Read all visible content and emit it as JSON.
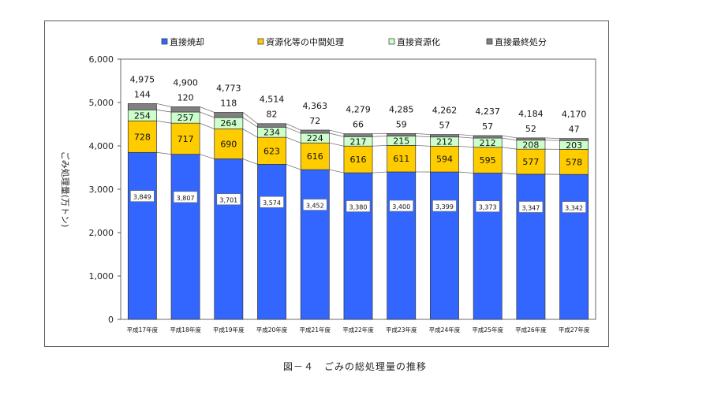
{
  "caption": "図－４　ごみの総処理量の推移",
  "chart_data": {
    "type": "bar",
    "stacked": true,
    "ylabel": "ごみ処理量(万トン)",
    "xlabel": "",
    "ylim": [
      0,
      6000
    ],
    "yticks": [
      "0",
      "1,000",
      "2,000",
      "3,000",
      "4,000",
      "5,000",
      "6,000"
    ],
    "legend_position": "top",
    "categories": [
      "平成17年度",
      "平成18年度",
      "平成19年度",
      "平成20年度",
      "平成21年度",
      "平成22年度",
      "平成23年度",
      "平成24年度",
      "平成25年度",
      "平成26年度",
      "平成27年度"
    ],
    "series": [
      {
        "name": "直接焼却",
        "color": "#3366FF",
        "values": [
          3849,
          3807,
          3701,
          3574,
          3452,
          3380,
          3400,
          3399,
          3373,
          3347,
          3342
        ],
        "labels": [
          "3,849",
          "3,807",
          "3,701",
          "3,574",
          "3,452",
          "3,380",
          "3,400",
          "3,399",
          "3,373",
          "3,347",
          "3,342"
        ]
      },
      {
        "name": "資源化等の中間処理",
        "color": "#FFCC00",
        "values": [
          728,
          717,
          690,
          623,
          616,
          616,
          611,
          594,
          595,
          577,
          578
        ],
        "labels": [
          "728",
          "717",
          "690",
          "623",
          "616",
          "616",
          "611",
          "594",
          "595",
          "577",
          "578"
        ]
      },
      {
        "name": "直接資源化",
        "color": "#CCFFCC",
        "values": [
          254,
          257,
          264,
          234,
          224,
          217,
          215,
          212,
          212,
          208,
          203
        ],
        "labels": [
          "254",
          "257",
          "264",
          "234",
          "224",
          "217",
          "215",
          "212",
          "212",
          "208",
          "203"
        ]
      },
      {
        "name": "直接最終処分",
        "color": "#808080",
        "values": [
          144,
          120,
          118,
          82,
          72,
          66,
          59,
          57,
          57,
          52,
          47
        ],
        "labels": [
          "144",
          "120",
          "118",
          "82",
          "72",
          "66",
          "59",
          "57",
          "57",
          "52",
          "47"
        ]
      }
    ],
    "totals": [
      4975,
      4900,
      4773,
      4514,
      4363,
      4279,
      4285,
      4262,
      4237,
      4184,
      4170
    ],
    "total_labels": [
      "4,975",
      "4,900",
      "4,773",
      "4,514",
      "4,363",
      "4,279",
      "4,285",
      "4,262",
      "4,237",
      "4,184",
      "4,170"
    ]
  }
}
